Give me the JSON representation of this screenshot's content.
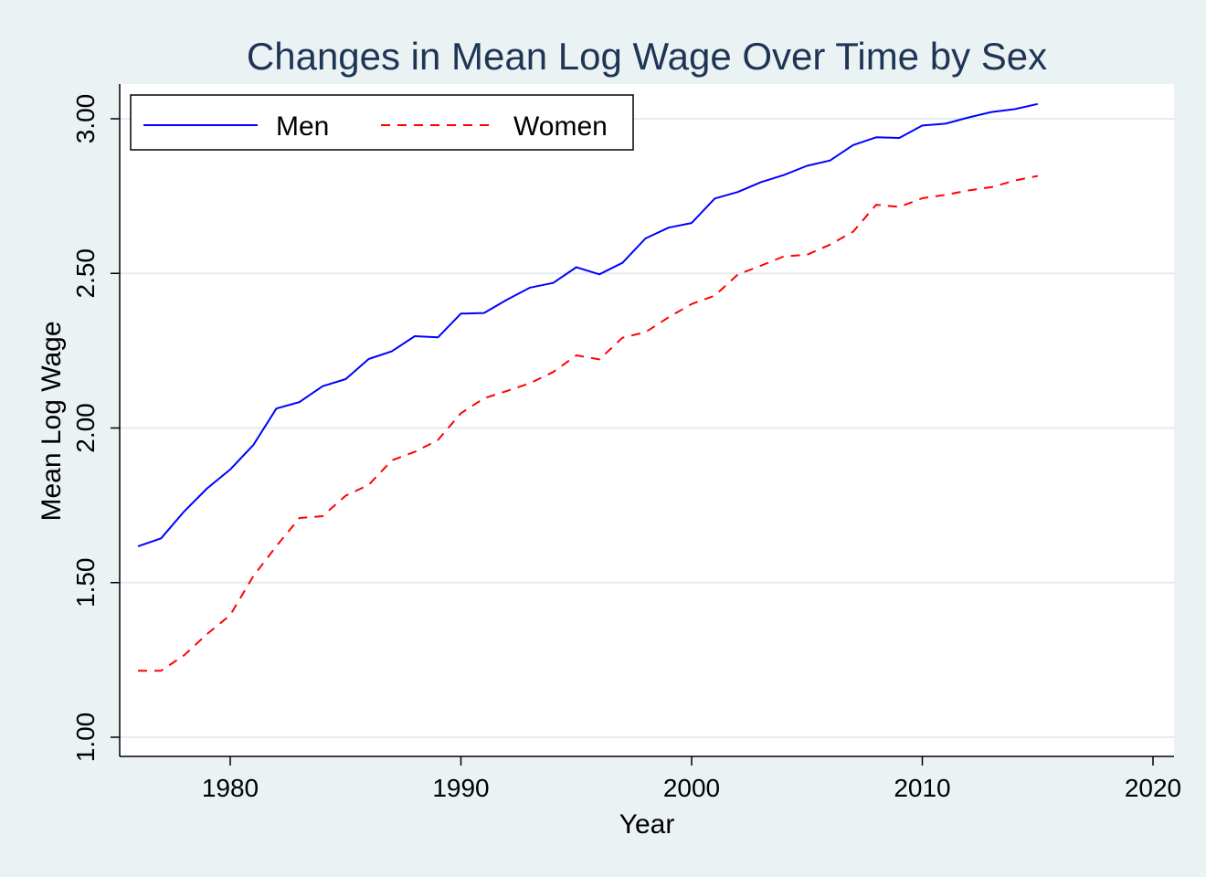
{
  "chart_data": {
    "type": "line",
    "title": "Changes in Mean Log Wage Over Time by Sex",
    "xlabel": "Year",
    "ylabel": "Mean Log Wage",
    "xlim": [
      1976,
      2021
    ],
    "ylim": [
      0.94,
      3.11
    ],
    "x_ticks": [
      1980,
      1990,
      2000,
      2010,
      2020
    ],
    "y_ticks": [
      1.0,
      1.5,
      2.0,
      2.5,
      3.0
    ],
    "x_tick_labels": [
      "1980",
      "1990",
      "2000",
      "2010",
      "2020"
    ],
    "y_tick_labels": [
      "1.00",
      "1.50",
      "2.00",
      "2.50",
      "3.00"
    ],
    "grid": true,
    "legend_position": "top-left",
    "x": [
      1976,
      1977,
      1978,
      1979,
      1980,
      1981,
      1982,
      1983,
      1984,
      1985,
      1986,
      1987,
      1988,
      1989,
      1990,
      1991,
      1992,
      1993,
      1994,
      1995,
      1996,
      1997,
      1998,
      1999,
      2000,
      2001,
      2002,
      2003,
      2004,
      2005,
      2006,
      2007,
      2008,
      2009,
      2010,
      2011,
      2012,
      2013,
      2014,
      2015
    ],
    "series": [
      {
        "name": "Men",
        "color": "#0000ff",
        "dash": "solid",
        "values": [
          1.617,
          1.643,
          1.73,
          1.805,
          1.866,
          1.945,
          2.063,
          2.084,
          2.135,
          2.158,
          2.223,
          2.248,
          2.297,
          2.293,
          2.37,
          2.372,
          2.415,
          2.454,
          2.469,
          2.52,
          2.497,
          2.534,
          2.613,
          2.648,
          2.663,
          2.742,
          2.763,
          2.795,
          2.818,
          2.848,
          2.865,
          2.915,
          2.94,
          2.938,
          2.978,
          2.984,
          3.004,
          3.022,
          3.031,
          3.048
        ]
      },
      {
        "name": "Women",
        "color": "#ff0000",
        "dash": "dashed",
        "values": [
          1.215,
          1.215,
          1.265,
          1.334,
          1.395,
          1.521,
          1.618,
          1.709,
          1.715,
          1.781,
          1.816,
          1.895,
          1.923,
          1.961,
          2.048,
          2.096,
          2.12,
          2.145,
          2.181,
          2.235,
          2.222,
          2.292,
          2.31,
          2.358,
          2.401,
          2.428,
          2.496,
          2.525,
          2.555,
          2.56,
          2.593,
          2.635,
          2.722,
          2.715,
          2.743,
          2.754,
          2.768,
          2.779,
          2.8,
          2.815
        ]
      }
    ]
  },
  "colors": {
    "page_background": "#eaf2f3",
    "plot_background": "#ffffff",
    "title_color": "#1f3556",
    "grid_color": "#e3ecee",
    "axis_color": "#000000"
  }
}
